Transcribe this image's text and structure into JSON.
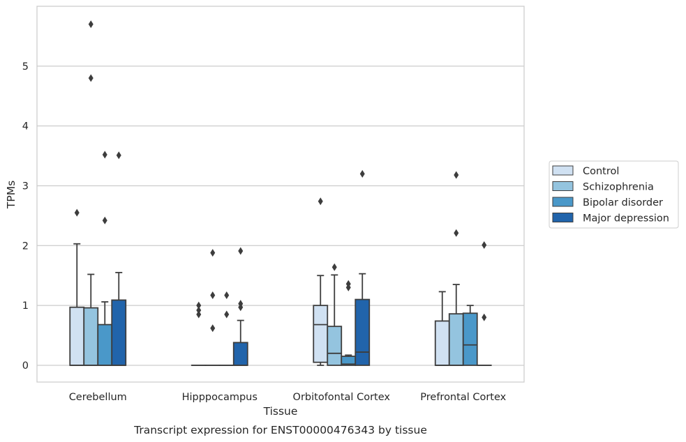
{
  "chart_data": {
    "type": "box",
    "title": "",
    "caption": "Transcript expression for ENST00000476343 by tissue",
    "xlabel": "Tissue",
    "ylabel": "TPMs",
    "ylim": [
      -0.28,
      6.0
    ],
    "yticks": [
      0,
      1,
      2,
      3,
      4,
      5
    ],
    "grid": "horizontal",
    "legend_position": "right",
    "categories": [
      "Cerebellum",
      "Hipppocampus",
      "Orbitofontal Cortex",
      "Prefrontal Cortex"
    ],
    "series": [
      {
        "name": "Control",
        "color": "#d0e1f2",
        "boxes": [
          {
            "q1": 0,
            "median": 0,
            "q3": 0.97,
            "whisker_low": 0,
            "whisker_high": 2.03,
            "outliers": [
              2.55
            ]
          },
          {
            "q1": 0,
            "median": 0,
            "q3": 0,
            "whisker_low": 0,
            "whisker_high": 0,
            "outliers": [
              0.85,
              0.92,
              1.0
            ]
          },
          {
            "q1": 0.05,
            "median": 0.68,
            "q3": 1.0,
            "whisker_low": 0,
            "whisker_high": 1.5,
            "outliers": [
              2.74
            ]
          },
          {
            "q1": 0,
            "median": 0,
            "q3": 0.74,
            "whisker_low": 0,
            "whisker_high": 1.23,
            "outliers": []
          }
        ]
      },
      {
        "name": "Schizophrenia",
        "color": "#94c4df",
        "boxes": [
          {
            "q1": 0,
            "median": 0,
            "q3": 0.96,
            "whisker_low": 0,
            "whisker_high": 1.52,
            "outliers": [
              4.8,
              5.7
            ]
          },
          {
            "q1": 0,
            "median": 0,
            "q3": 0,
            "whisker_low": 0,
            "whisker_high": 0,
            "outliers": [
              0.62,
              1.17,
              1.88
            ]
          },
          {
            "q1": 0,
            "median": 0.2,
            "q3": 0.65,
            "whisker_low": 0,
            "whisker_high": 1.51,
            "outliers": [
              1.64
            ]
          },
          {
            "q1": 0,
            "median": 0,
            "q3": 0.86,
            "whisker_low": 0,
            "whisker_high": 1.35,
            "outliers": [
              2.21,
              3.18
            ]
          }
        ]
      },
      {
        "name": "Bipolar disorder",
        "color": "#4a98c9",
        "boxes": [
          {
            "q1": 0,
            "median": 0,
            "q3": 0.68,
            "whisker_low": 0,
            "whisker_high": 1.06,
            "outliers": [
              2.42,
              3.52
            ]
          },
          {
            "q1": 0,
            "median": 0,
            "q3": 0,
            "whisker_low": 0,
            "whisker_high": 0,
            "outliers": [
              0.85,
              1.17
            ]
          },
          {
            "q1": 0,
            "median": 0.02,
            "q3": 0.15,
            "whisker_low": 0,
            "whisker_high": 0.17,
            "outliers": [
              1.3,
              1.36
            ]
          },
          {
            "q1": 0,
            "median": 0.34,
            "q3": 0.87,
            "whisker_low": 0,
            "whisker_high": 1.0,
            "outliers": []
          }
        ]
      },
      {
        "name": "Major depression",
        "color": "#2164ab",
        "boxes": [
          {
            "q1": 0,
            "median": 0,
            "q3": 1.09,
            "whisker_low": 0,
            "whisker_high": 1.55,
            "outliers": [
              3.51
            ]
          },
          {
            "q1": 0,
            "median": 0,
            "q3": 0.38,
            "whisker_low": 0,
            "whisker_high": 0.75,
            "outliers": [
              0.97,
              1.03,
              1.91
            ]
          },
          {
            "q1": 0,
            "median": 0.22,
            "q3": 1.1,
            "whisker_low": 0,
            "whisker_high": 1.53,
            "outliers": [
              3.2
            ]
          },
          {
            "q1": 0,
            "median": 0,
            "q3": 0,
            "whisker_low": 0,
            "whisker_high": 0,
            "outliers": [
              0.8,
              2.01
            ]
          }
        ]
      }
    ]
  }
}
